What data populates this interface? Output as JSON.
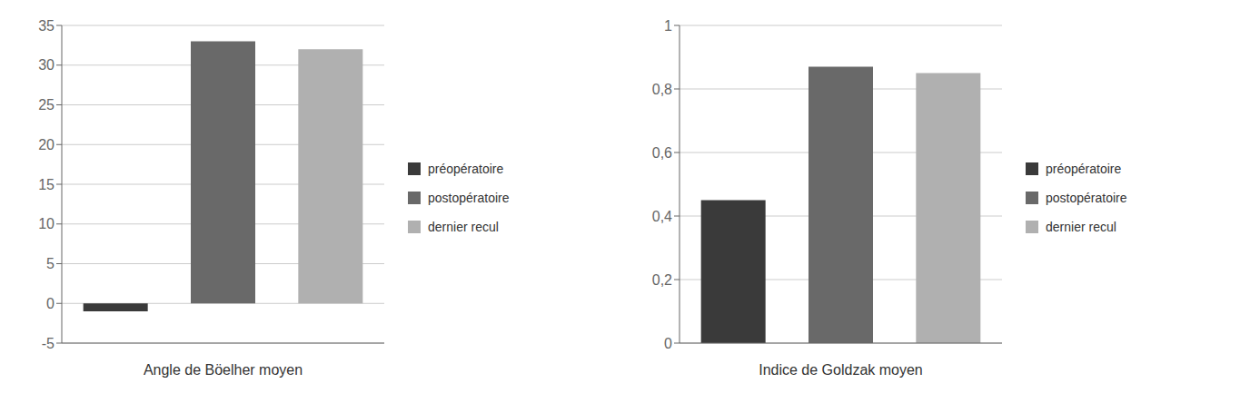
{
  "chart_data": [
    {
      "type": "bar",
      "xlabel": "Angle de Böelher moyen",
      "categories": [
        "préopératoire",
        "postopératoire",
        "dernier recul"
      ],
      "values": [
        -1,
        33,
        32
      ],
      "colors": [
        "#3a3a3a",
        "#696969",
        "#b0b0b0"
      ],
      "ylim": [
        -5,
        35
      ],
      "yticks": [
        -5,
        0,
        5,
        10,
        15,
        20,
        25,
        30,
        35
      ],
      "grid": true,
      "legend": "right",
      "tick_labels": "y"
    },
    {
      "type": "bar",
      "xlabel": "Indice de Goldzak moyen",
      "categories": [
        "préopératoire",
        "postopératoire",
        "dernier recul"
      ],
      "values": [
        0.45,
        0.87,
        0.85
      ],
      "colors": [
        "#3a3a3a",
        "#696969",
        "#b0b0b0"
      ],
      "ylim": [
        0,
        1
      ],
      "yticks": [
        0,
        {
          "value": 0.2,
          "label": "0,2"
        },
        {
          "value": 0.4,
          "label": "0,4"
        },
        {
          "value": 0.6,
          "label": "0,6"
        },
        {
          "value": 0.8,
          "label": "0,8"
        },
        1
      ],
      "grid": true,
      "legend": "right",
      "tick_labels": "y"
    }
  ]
}
